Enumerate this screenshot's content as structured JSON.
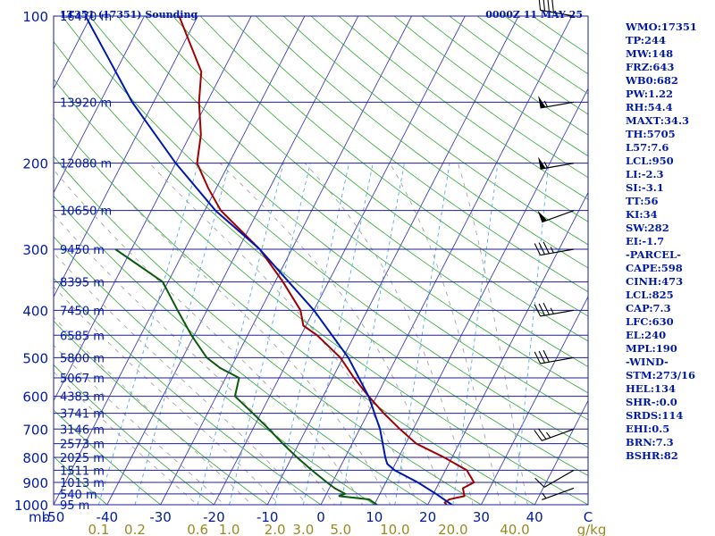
{
  "header": {
    "station": "LT351 (17351) Sounding",
    "time": "0000Z 11 MAY 25"
  },
  "chart_data": {
    "type": "line",
    "title": "LT351 (17351) Sounding",
    "subtitle": "0000Z 11 MAY 25",
    "xlabel": "",
    "ylabel": "mb",
    "xlim": [
      -50,
      50
    ],
    "ylim": [
      1000,
      100
    ],
    "x_ticks": [
      -50,
      -40,
      -30,
      -20,
      -10,
      0,
      10,
      20,
      30,
      40,
      50
    ],
    "x_tick_labels": [
      "-50",
      "-40",
      "-30",
      "-20",
      "-10",
      "0",
      "10",
      "20",
      "30",
      "40",
      "C"
    ],
    "y_ticks": [
      1000,
      900,
      800,
      700,
      600,
      500,
      400,
      300,
      200,
      100
    ],
    "mixing_ratio_labels": [
      "0.1",
      "0.2",
      "0.6",
      "1.0",
      "2.0",
      "3.0",
      "5.0",
      "10.0",
      "20.0",
      "40.0",
      "g/kg"
    ],
    "mixing_ratios": [
      0.1,
      0.2,
      0.6,
      1.0,
      2.0,
      3.0,
      5.0,
      10.0,
      20.0,
      40.0
    ],
    "height_levels": [
      {
        "p": 100,
        "label": "16470 m"
      },
      {
        "p": 150,
        "label": "13920 m"
      },
      {
        "p": 200,
        "label": "12080 m"
      },
      {
        "p": 250,
        "label": "10650 m"
      },
      {
        "p": 300,
        "label": "9450 m"
      },
      {
        "p": 350,
        "label": "8395 m"
      },
      {
        "p": 400,
        "label": "7450 m"
      },
      {
        "p": 450,
        "label": "6585 m"
      },
      {
        "p": 500,
        "label": "5800 m"
      },
      {
        "p": 550,
        "label": "5067 m"
      },
      {
        "p": 600,
        "label": "4383 m"
      },
      {
        "p": 650,
        "label": "3741 m"
      },
      {
        "p": 700,
        "label": "3146 m"
      },
      {
        "p": 750,
        "label": "2573 m"
      },
      {
        "p": 800,
        "label": "2025 m"
      },
      {
        "p": 850,
        "label": "1511 m"
      },
      {
        "p": 900,
        "label": "1013 m"
      },
      {
        "p": 950,
        "label": "540 m"
      },
      {
        "p": 1000,
        "label": "95 m"
      }
    ],
    "series": [
      {
        "name": "Temperature",
        "color": "#a00000",
        "points": [
          [
            1000,
            23.5
          ],
          [
            990,
            23.0
          ],
          [
            975,
            23.5
          ],
          [
            960,
            26.0
          ],
          [
            925,
            25.0
          ],
          [
            900,
            26.5
          ],
          [
            850,
            24.0
          ],
          [
            800,
            18.5
          ],
          [
            750,
            12.0
          ],
          [
            700,
            7.5
          ],
          [
            650,
            3.0
          ],
          [
            600,
            -1.5
          ],
          [
            550,
            -6.0
          ],
          [
            500,
            -10.5
          ],
          [
            450,
            -17.0
          ],
          [
            430,
            -20.5
          ],
          [
            400,
            -22.5
          ],
          [
            350,
            -28.5
          ],
          [
            300,
            -36.0
          ],
          [
            250,
            -47.0
          ],
          [
            225,
            -51.5
          ],
          [
            200,
            -56.0
          ],
          [
            175,
            -58.0
          ],
          [
            150,
            -61.5
          ],
          [
            130,
            -64.0
          ],
          [
            100,
            -73.5
          ]
        ]
      },
      {
        "name": "Dewpoint",
        "color": "#0a5a0a",
        "points": [
          [
            1000,
            10.5
          ],
          [
            975,
            8.5
          ],
          [
            960,
            2.5
          ],
          [
            950,
            3.5
          ],
          [
            925,
            1.0
          ],
          [
            900,
            -1.0
          ],
          [
            850,
            -5.0
          ],
          [
            800,
            -9.0
          ],
          [
            750,
            -13.0
          ],
          [
            700,
            -17.0
          ],
          [
            650,
            -21.5
          ],
          [
            600,
            -26.5
          ],
          [
            550,
            -27.5
          ],
          [
            525,
            -32.0
          ],
          [
            500,
            -35.5
          ],
          [
            450,
            -40.5
          ],
          [
            400,
            -45.5
          ],
          [
            350,
            -51.0
          ],
          [
            300,
            -63.0
          ]
        ]
      },
      {
        "name": "Parcel",
        "color": "#0018b0",
        "points": [
          [
            1000,
            24.5
          ],
          [
            950,
            20.5
          ],
          [
            900,
            16.0
          ],
          [
            850,
            10.5
          ],
          [
            825,
            8.5
          ],
          [
            800,
            7.5
          ],
          [
            700,
            3.8
          ],
          [
            600,
            -1.5
          ],
          [
            500,
            -9.0
          ],
          [
            400,
            -20.0
          ],
          [
            300,
            -36.0
          ],
          [
            250,
            -48.0
          ],
          [
            200,
            -60.0
          ],
          [
            150,
            -74.0
          ],
          [
            100,
            -91.0
          ]
        ]
      }
    ],
    "wind_barbs": [
      {
        "p": 100,
        "dir": 280,
        "kt": 40
      },
      {
        "p": 150,
        "dir": 260,
        "kt": 55
      },
      {
        "p": 200,
        "dir": 260,
        "kt": 55
      },
      {
        "p": 250,
        "dir": 250,
        "kt": 50
      },
      {
        "p": 300,
        "dir": 260,
        "kt": 35
      },
      {
        "p": 400,
        "dir": 260,
        "kt": 35
      },
      {
        "p": 500,
        "dir": 260,
        "kt": 30
      },
      {
        "p": 700,
        "dir": 250,
        "kt": 25
      },
      {
        "p": 850,
        "dir": 240,
        "kt": 10
      },
      {
        "p": 925,
        "dir": 250,
        "kt": 5
      }
    ],
    "grid": true
  },
  "indices": [
    "WMO:17351",
    "TP:244",
    "MW:148",
    "FRZ:643",
    "WB0:682",
    "PW:1.22",
    "RH:54.4",
    "MAXT:34.3",
    "TH:5705",
    "L57:7.6",
    "LCL:950",
    "LI:-2.3",
    "SI:-3.1",
    "TT:56",
    "KI:34",
    "SW:282",
    "EI:-1.7",
    "-PARCEL-",
    "CAPE:598",
    "CINH:473",
    "LCL:825",
    "CAP:7.3",
    "LFC:630",
    "EL:240",
    "MPL:190",
    "-WIND-",
    "STM:273/16",
    "HEL:134",
    "SHR-:0.0",
    "SRDS:114",
    "EHI:0.5",
    "BRN:7.3",
    "BSHR:82"
  ],
  "colors": {
    "isobar": "#1e1e9a",
    "isotherm": "#4040c0",
    "dry_adiabat": "#2eaa2e",
    "moist_adiabat": "#999999",
    "mixing_ratio": "#55aaee",
    "axis_label": "#001aa6",
    "mixing_label": "#9a8a20"
  }
}
